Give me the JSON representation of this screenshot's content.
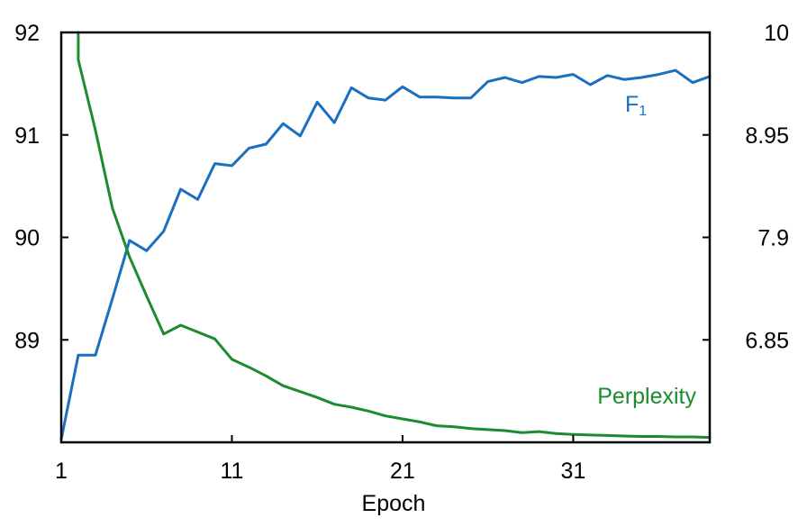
{
  "chart_data": {
    "type": "line",
    "title": "",
    "xlabel": "Epoch",
    "ylabel_left": "",
    "ylabel_right": "",
    "x_ticks": [
      "1",
      "11",
      "21",
      "31"
    ],
    "y_left_ticks": [
      "89",
      "90",
      "91",
      "92"
    ],
    "y_right_ticks": [
      "6.85",
      "7.9",
      "8.95",
      "10"
    ],
    "xlim": [
      1,
      39
    ],
    "ylim_left": [
      88,
      92
    ],
    "ylim_right": [
      5.8,
      10
    ],
    "grid": false,
    "legend": "inline labels",
    "series": [
      {
        "name": "F",
        "name_subscript": "1",
        "axis": "left",
        "color": "#1a6fc0",
        "x": [
          1,
          2,
          3,
          4,
          5,
          6,
          7,
          8,
          9,
          10,
          11,
          12,
          13,
          14,
          15,
          16,
          17,
          18,
          19,
          20,
          21,
          22,
          23,
          24,
          25,
          26,
          27,
          28,
          29,
          30,
          31,
          32,
          33,
          34,
          35,
          36,
          37,
          38,
          39
        ],
        "values": [
          88.03,
          88.85,
          88.85,
          89.4,
          89.97,
          89.87,
          90.06,
          90.47,
          90.37,
          90.72,
          90.7,
          90.87,
          90.91,
          91.11,
          90.99,
          91.32,
          91.12,
          91.46,
          91.36,
          91.34,
          91.47,
          91.37,
          91.37,
          91.36,
          91.36,
          91.52,
          91.56,
          91.51,
          91.57,
          91.56,
          91.59,
          91.49,
          91.58,
          91.54,
          91.56,
          91.59,
          91.63,
          91.51,
          91.57
        ]
      },
      {
        "name": "Perplexity",
        "axis": "right",
        "color": "#1e8c2e",
        "x": [
          2,
          2,
          3,
          4,
          5,
          6,
          7,
          8,
          9,
          10,
          11,
          12,
          13,
          14,
          15,
          16,
          17,
          18,
          19,
          20,
          21,
          22,
          23,
          24,
          25,
          26,
          27,
          28,
          29,
          30,
          31,
          32,
          33,
          34,
          35,
          36,
          37,
          38,
          39
        ],
        "values": [
          10.0,
          9.72,
          9.0,
          8.2,
          7.7,
          7.3,
          6.91,
          7.0,
          6.93,
          6.86,
          6.65,
          6.57,
          6.48,
          6.38,
          6.32,
          6.26,
          6.19,
          6.16,
          6.12,
          6.07,
          6.04,
          6.01,
          5.97,
          5.96,
          5.94,
          5.93,
          5.92,
          5.9,
          5.91,
          5.89,
          5.88,
          5.875,
          5.87,
          5.865,
          5.86,
          5.86,
          5.855,
          5.855,
          5.85
        ]
      }
    ]
  }
}
